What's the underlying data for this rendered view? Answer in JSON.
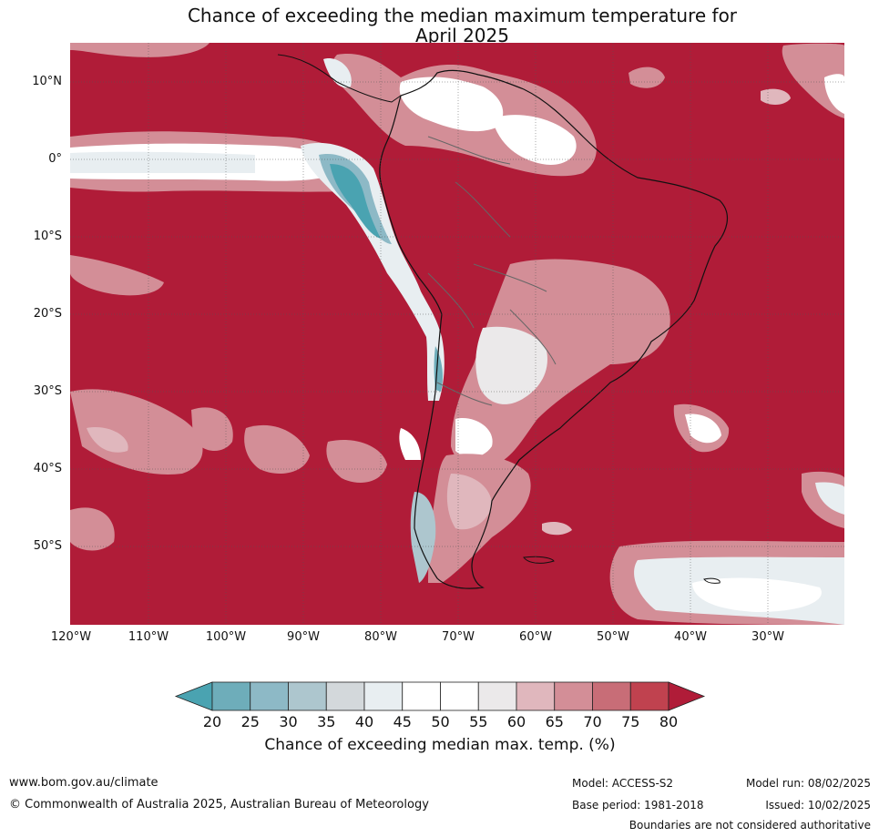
{
  "header": {
    "title_line1": "Chance of exceeding the median maximum temperature for",
    "title_line2": "April 2025"
  },
  "map": {
    "lat_labels": [
      "10°N",
      "0°",
      "10°S",
      "20°S",
      "30°S",
      "40°S",
      "50°S"
    ],
    "lon_labels": [
      "120°W",
      "110°W",
      "100°W",
      "90°W",
      "80°W",
      "70°W",
      "60°W",
      "50°W",
      "40°W",
      "30°W"
    ],
    "background_color": "#b01c38"
  },
  "colorbar": {
    "ticks": [
      "20",
      "25",
      "30",
      "35",
      "40",
      "45",
      "50",
      "55",
      "60",
      "65",
      "70",
      "75",
      "80"
    ],
    "colors": [
      "#4aa3b1",
      "#6eadba",
      "#8db9c6",
      "#adc6ce",
      "#d3d8db",
      "#e8eef1",
      "#ffffff",
      "#ffffff",
      "#ebe9ea",
      "#e0b7bd",
      "#d38e97",
      "#c86d77",
      "#c0424f",
      "#b01c38"
    ],
    "label": "Chance of exceeding median max. temp. (%)"
  },
  "footer": {
    "website": "www.bom.gov.au/climate",
    "copyright": "© Commonwealth of Australia 2025, Australian Bureau of Meteorology",
    "model": "Model: ACCESS-S2",
    "base_period": "Base period: 1981-2018",
    "model_run": "Model run: 08/02/2025",
    "issued": "Issued: 10/02/2025",
    "disclaimer": "Boundaries are not considered authoritative"
  }
}
